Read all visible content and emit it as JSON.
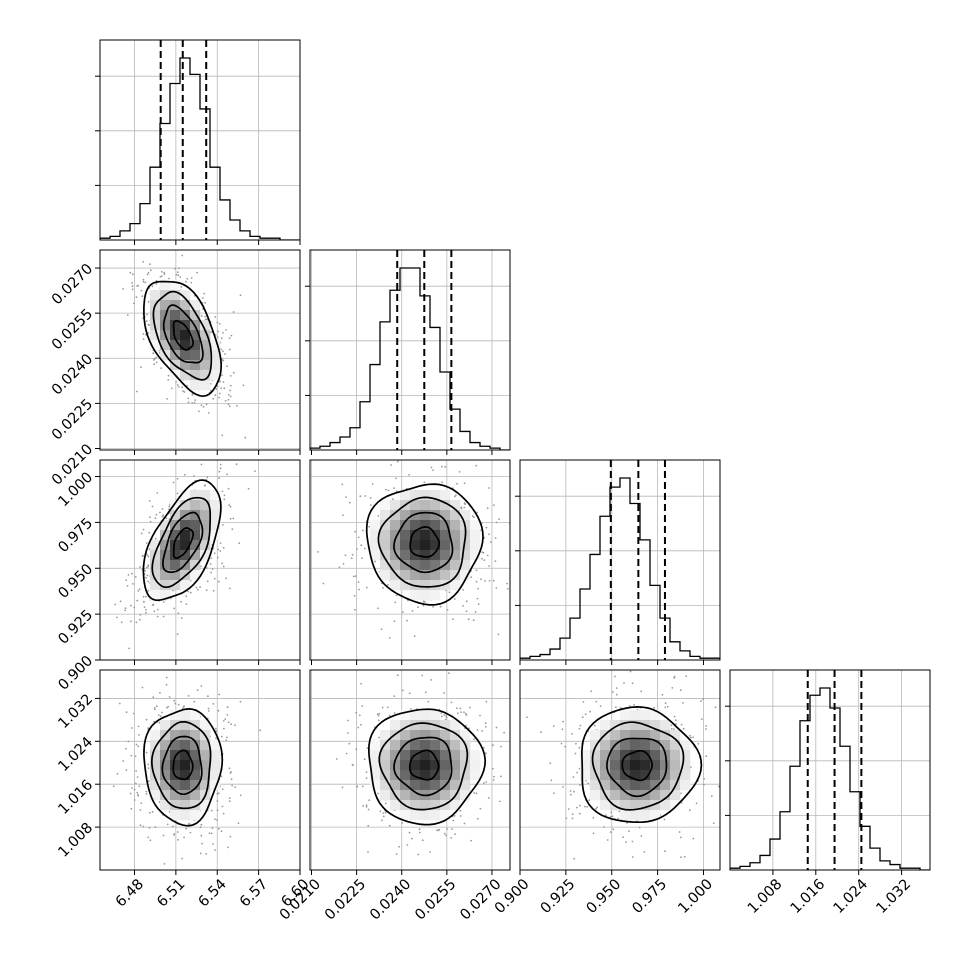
{
  "chart_data": {
    "type": "corner",
    "parameters": [
      {
        "index": 0,
        "range": [
          6.455,
          6.6
        ],
        "ticks": [
          6.48,
          6.51,
          6.54,
          6.57,
          6.6
        ],
        "tick_labels": [
          "6.48",
          "6.51",
          "6.54",
          "6.57",
          "6.60"
        ],
        "mean": 6.515,
        "std": 0.0125,
        "quantiles": [
          6.499,
          6.515,
          6.532
        ],
        "hist_counts": [
          1,
          2,
          5,
          9,
          20,
          40,
          64,
          86,
          100,
          91,
          72,
          40,
          22,
          11,
          5,
          2,
          1,
          1,
          0,
          0
        ]
      },
      {
        "index": 1,
        "range": [
          0.02095,
          0.0276
        ],
        "ticks": [
          0.021,
          0.0225,
          0.024,
          0.0255,
          0.027
        ],
        "tick_labels": [
          "0.0210",
          "0.0225",
          "0.0240",
          "0.0255",
          "0.0270"
        ],
        "mean": 0.02475,
        "std": 0.00085,
        "quantiles": [
          0.02385,
          0.02475,
          0.02565
        ],
        "hist_counts": [
          1,
          2,
          4,
          7,
          12,
          26,
          46,
          69,
          86,
          98,
          98,
          83,
          66,
          42,
          22,
          10,
          4,
          2,
          1,
          0
        ]
      },
      {
        "index": 2,
        "range": [
          0.9,
          1.009
        ],
        "ticks": [
          0.9,
          0.925,
          0.95,
          0.975,
          1.0
        ],
        "tick_labels": [
          "0.900",
          "0.925",
          "0.950",
          "0.975",
          "1.000"
        ],
        "mean": 0.964,
        "std": 0.0145,
        "quantiles": [
          0.9495,
          0.9645,
          0.979
        ],
        "hist_counts": [
          1,
          2,
          3,
          6,
          12,
          23,
          39,
          58,
          79,
          95,
          100,
          86,
          66,
          41,
          23,
          10,
          5,
          2,
          1,
          1
        ]
      },
      {
        "index": 3,
        "range": [
          1.0,
          1.0373
        ],
        "ticks": [
          1.008,
          1.016,
          1.024,
          1.032
        ],
        "tick_labels": [
          "1.008",
          "1.016",
          "1.024",
          "1.032"
        ],
        "mean": 1.0195,
        "std": 0.0048,
        "quantiles": [
          1.0145,
          1.0195,
          1.0245
        ],
        "hist_counts": [
          1,
          2,
          4,
          8,
          17,
          32,
          57,
          82,
          96,
          100,
          89,
          68,
          43,
          24,
          12,
          5,
          3,
          1,
          1,
          0
        ]
      }
    ],
    "correlations": {
      "1-0": -0.5,
      "2-0": 0.55,
      "2-1": 0.0,
      "3-0": 0.0,
      "3-1": 0.0,
      "3-2": 0.0
    },
    "contour_levels_sigma": [
      0.5,
      1.0,
      1.5,
      2.0
    ],
    "quantiles_shown": [
      0.16,
      0.5,
      0.84
    ],
    "grid": true,
    "scatter": true,
    "style": {
      "line_color": "#000000",
      "scatter_color": "#9a9a9a",
      "density_dark": "#262626",
      "grid_color": "#b8b8b8"
    }
  }
}
